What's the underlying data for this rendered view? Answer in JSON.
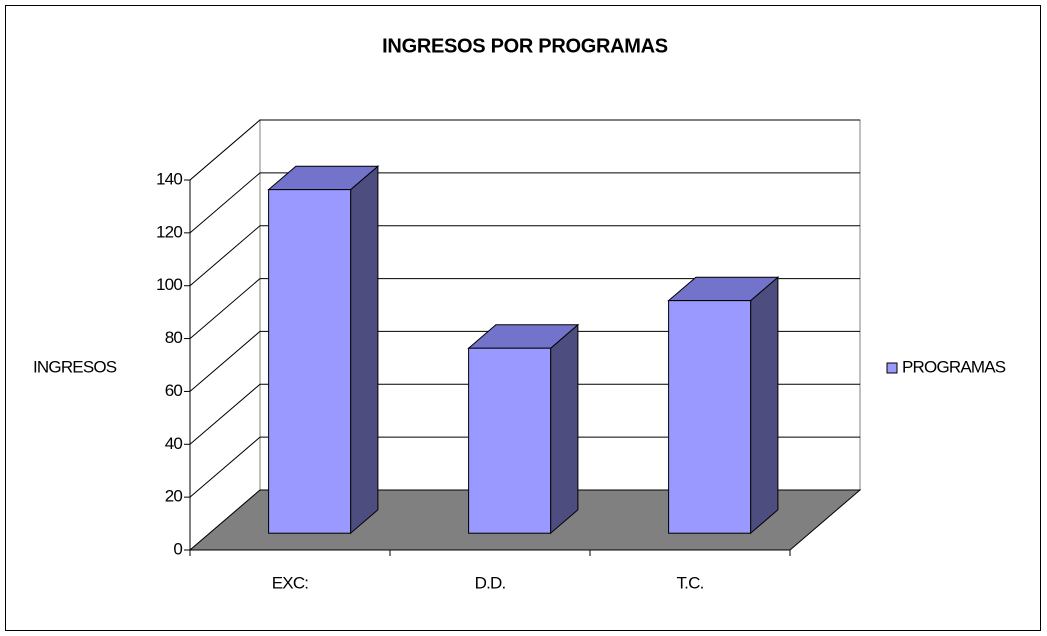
{
  "chart_data": {
    "type": "bar3d",
    "title": "INGRESOS POR PROGRAMAS",
    "y_label": "INGRESOS",
    "categories": [
      "EXC:",
      "D.D.",
      "T.C."
    ],
    "series": [
      {
        "name": "PROGRAMAS",
        "color": "#9999ff",
        "values": [
          130,
          70,
          88
        ]
      }
    ],
    "ylim": [
      0,
      140
    ],
    "yticks": [
      0,
      20,
      40,
      60,
      80,
      100,
      120,
      140
    ],
    "grid": true,
    "legend": "right"
  }
}
